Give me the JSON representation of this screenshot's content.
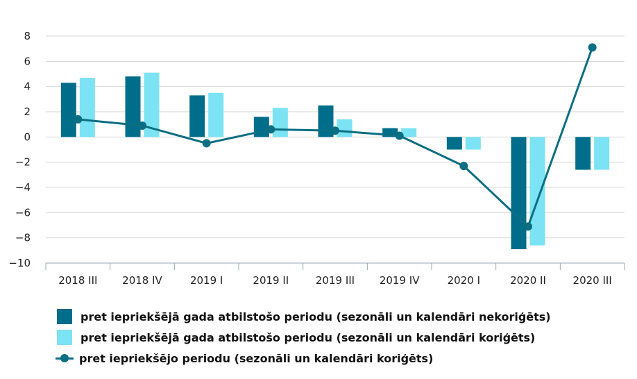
{
  "chart_data": {
    "type": "bar",
    "categories": [
      "2018 III",
      "2018 IV",
      "2019 I",
      "2019 II",
      "2019 III",
      "2019 IV",
      "2020 I",
      "2020 II",
      "2020 III"
    ],
    "ylim": [
      -10,
      8
    ],
    "yticks": [
      8,
      6,
      4,
      2,
      0,
      -2,
      -4,
      -6,
      -8,
      -10
    ],
    "ytick_labels": [
      "8",
      "6",
      "4",
      "2",
      "0",
      "−2",
      "−4",
      "−6",
      "−8",
      "−10"
    ],
    "grid": true,
    "legend_position": "bottom-left",
    "series": [
      {
        "name": "pret iepriekšējā gada atbilstošo periodu (sezonāli un kalendāri nekoriģēts)",
        "type": "bar",
        "color": "#006e8a",
        "values": [
          4.3,
          4.8,
          3.3,
          1.6,
          2.5,
          0.7,
          -1.0,
          -8.9,
          -2.6
        ]
      },
      {
        "name": "pret iepriekšējā gada atbilstošo periodu (sezonāli un kalendāri koriģēts)",
        "type": "bar",
        "color": "#7be3f3",
        "values": [
          4.7,
          5.1,
          3.5,
          2.3,
          1.4,
          0.7,
          -1.0,
          -8.6,
          -2.6
        ]
      },
      {
        "name": "pret iepriekšējo periodu (sezonāli un kalendāri koriģēts)",
        "type": "line",
        "color": "#0b6e83",
        "values": [
          1.4,
          0.9,
          -0.5,
          0.6,
          0.5,
          0.1,
          -2.3,
          -7.1,
          7.1
        ]
      }
    ]
  }
}
